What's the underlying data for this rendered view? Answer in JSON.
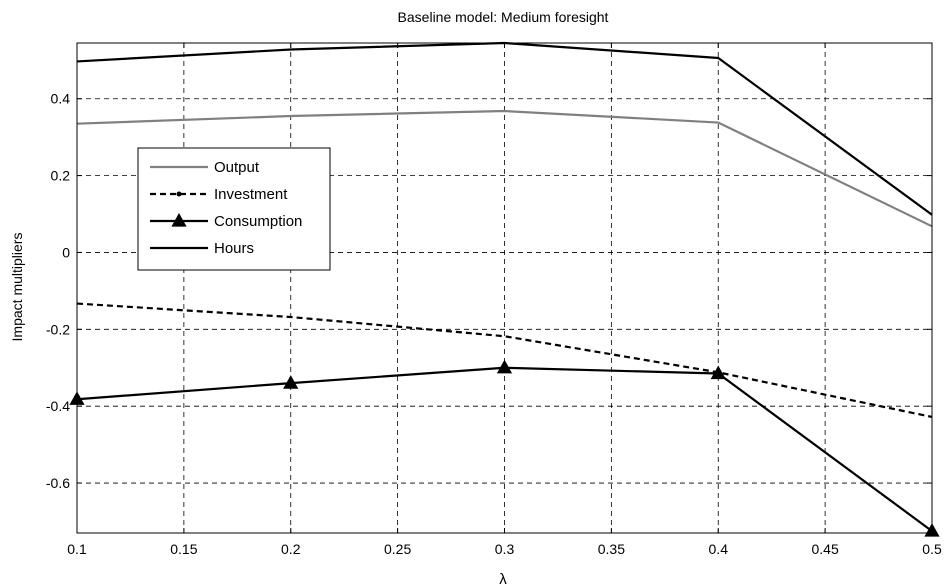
{
  "chart_data": {
    "type": "line",
    "title": "Baseline model: Medium foresight",
    "xlabel": "λ",
    "ylabel": "Impact multipliers",
    "xlim": [
      0.1,
      0.5
    ],
    "ylim": [
      -0.73,
      0.545
    ],
    "xticks": [
      "0.1",
      "0.15",
      "0.2",
      "0.25",
      "0.3",
      "0.35",
      "0.4",
      "0.45",
      "0.5"
    ],
    "yticks": [
      "-0.6",
      "-0.4",
      "-0.2",
      "0",
      "0.2",
      "0.4"
    ],
    "grid": true,
    "legend_position": "left",
    "x": [
      0.1,
      0.2,
      0.3,
      0.4,
      0.5
    ],
    "series": [
      {
        "name": "Output",
        "values": [
          0.335,
          0.355,
          0.368,
          0.338,
          0.068
        ],
        "color": "#808080",
        "style": "solid",
        "marker": "none"
      },
      {
        "name": "Investment",
        "values": [
          -0.133,
          -0.168,
          -0.218,
          -0.312,
          -0.428
        ],
        "color": "#000000",
        "style": "dashed",
        "marker": "dot"
      },
      {
        "name": "Consumption",
        "values": [
          -0.382,
          -0.34,
          -0.3,
          -0.315,
          -0.725
        ],
        "color": "#000000",
        "style": "solid",
        "marker": "triangle"
      },
      {
        "name": "Hours",
        "values": [
          0.497,
          0.528,
          0.545,
          0.506,
          0.098
        ],
        "color": "#000000",
        "style": "solid",
        "marker": "none"
      }
    ]
  }
}
